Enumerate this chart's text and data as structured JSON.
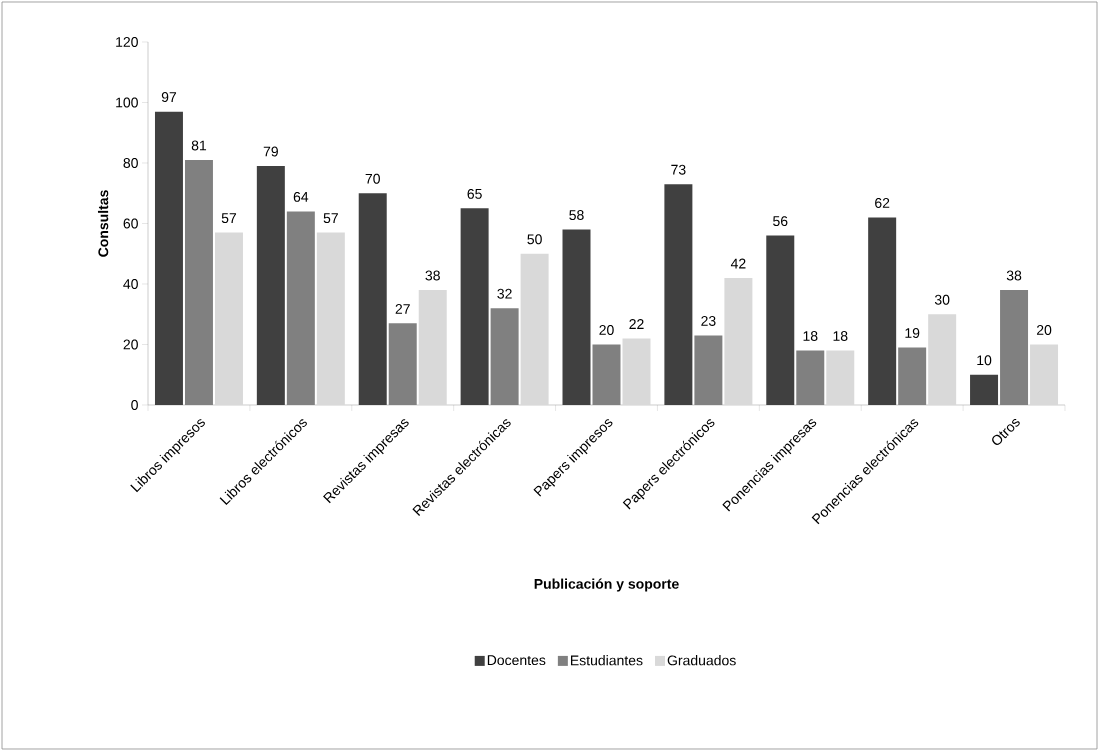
{
  "chart_data": {
    "type": "bar",
    "xlabel": "Publicación y soporte",
    "ylabel": "Consultas",
    "categories": [
      "Libros impresos",
      "Libros electrónicos",
      "Revistas impresas",
      "Revistas electrónicas",
      "Papers impresos",
      "Papers electrónicos",
      "Ponencias impresas",
      "Ponencias electrónicas",
      "Otros"
    ],
    "series": [
      {
        "name": "Docentes",
        "color": "#404040",
        "values": [
          97,
          79,
          70,
          65,
          58,
          73,
          56,
          62,
          10
        ]
      },
      {
        "name": "Estudiantes",
        "color": "#808080",
        "values": [
          81,
          64,
          27,
          32,
          20,
          23,
          18,
          19,
          38
        ]
      },
      {
        "name": "Graduados",
        "color": "#d9d9d9",
        "values": [
          57,
          57,
          38,
          50,
          22,
          42,
          18,
          30,
          20
        ]
      }
    ],
    "ylim": [
      0,
      120
    ],
    "yticks": [
      0,
      20,
      40,
      60,
      80,
      100,
      120
    ],
    "data_labels": true,
    "legend": "bottom"
  }
}
